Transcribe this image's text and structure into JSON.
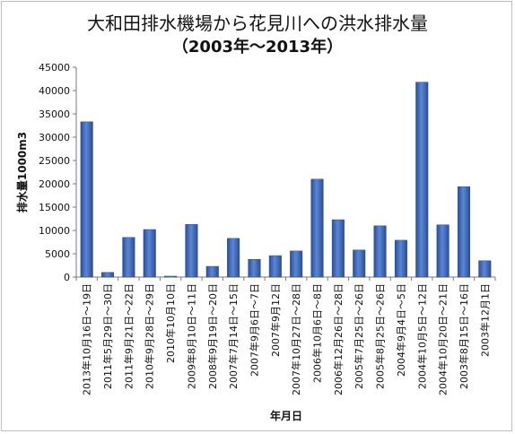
{
  "chart_data": {
    "type": "bar",
    "title": "大和田排水機場から花見川への洪水排水量",
    "subtitle": "（2003年～2013年）",
    "xlabel": "年月日",
    "ylabel": "排水量1000m3",
    "ylim": [
      0,
      45000
    ],
    "yticks": [
      0,
      5000,
      10000,
      15000,
      20000,
      25000,
      30000,
      35000,
      40000,
      45000
    ],
    "grid": false,
    "legend": "none",
    "bar_color": "#3a62b0",
    "categories": [
      "2013年10月16日～19日",
      "2011年5月29日～30日",
      "2011年9月21日～22日",
      "2010年9月28日～29日",
      "2010年10月10日",
      "2009年8月10日～11日",
      "2008年9月19日～20日",
      "2007年7月14日～15日",
      "2007年9月6日～7日",
      "2007年9月12日",
      "2007年10月27日～28日",
      "2006年10月6日～8日",
      "2006年12月26日～28日",
      "2005年7月25日～26日",
      "2005年8月25日～26日",
      "2004年9月4日～5日",
      "2004年10月5日～12日",
      "2004年10月20日～21日",
      "2003年8月15日～16日",
      "2003年12月1日"
    ],
    "values": [
      33300,
      1000,
      8500,
      10200,
      200,
      11300,
      2300,
      8300,
      3800,
      4600,
      5600,
      21000,
      12300,
      5800,
      11000,
      7900,
      41800,
      11200,
      19400,
      3500
    ]
  }
}
